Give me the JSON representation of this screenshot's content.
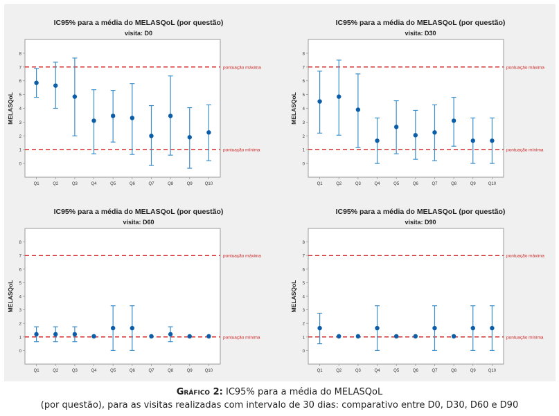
{
  "chart_data": [
    {
      "type": "scatter",
      "subtype": "interval_plot",
      "title": "IC95% para a média do MELASQoL (por questão)",
      "subtitle": "visita: D0",
      "ylabel": "MELASQoL",
      "xlabel": "",
      "ylim": [
        -1,
        9
      ],
      "yticks": [
        0,
        1,
        2,
        3,
        4,
        5,
        6,
        7,
        8
      ],
      "categories": [
        "Q1",
        "Q2",
        "Q3",
        "Q4",
        "Q5",
        "Q6",
        "Q7",
        "Q8",
        "Q9",
        "Q10"
      ],
      "means": [
        5.85,
        5.65,
        4.85,
        3.1,
        3.45,
        3.3,
        2.0,
        3.45,
        1.9,
        2.25
      ],
      "ci_low": [
        4.8,
        4.0,
        2.0,
        0.7,
        1.55,
        0.65,
        -0.15,
        0.6,
        -0.35,
        0.2
      ],
      "ci_high": [
        6.9,
        7.35,
        7.65,
        5.35,
        5.3,
        5.8,
        4.2,
        6.35,
        4.05,
        4.25
      ],
      "reference_lines": [
        {
          "value": 7,
          "label": "pontuação máxima",
          "color": "#d62728"
        },
        {
          "value": 1,
          "label": "pontuação mínima",
          "color": "#d62728"
        }
      ],
      "point_color": "#0b5da8",
      "interval_color": "#3c8ec9",
      "grid": false
    },
    {
      "type": "scatter",
      "subtype": "interval_plot",
      "title": "IC95% para a média do MELASQoL (por questão)",
      "subtitle": "visita: D30",
      "ylabel": "MELASQoL",
      "xlabel": "",
      "ylim": [
        -1,
        9
      ],
      "yticks": [
        0,
        1,
        2,
        3,
        4,
        5,
        6,
        7,
        8
      ],
      "categories": [
        "Q1",
        "Q2",
        "Q3",
        "Q4",
        "Q5",
        "Q6",
        "Q7",
        "Q8",
        "Q9",
        "Q10"
      ],
      "means": [
        4.5,
        4.85,
        3.9,
        1.65,
        2.65,
        2.05,
        2.25,
        3.1,
        1.65,
        1.65
      ],
      "ci_low": [
        2.2,
        2.05,
        1.15,
        0.0,
        0.7,
        0.3,
        0.2,
        1.25,
        0.0,
        0.0
      ],
      "ci_high": [
        6.7,
        7.5,
        6.5,
        3.3,
        4.55,
        3.85,
        4.25,
        4.8,
        3.3,
        3.3
      ],
      "reference_lines": [
        {
          "value": 7,
          "label": "pontuação máxima",
          "color": "#d62728"
        },
        {
          "value": 1,
          "label": "pontuação mínima",
          "color": "#d62728"
        }
      ],
      "point_color": "#0b5da8",
      "interval_color": "#3c8ec9",
      "grid": false
    },
    {
      "type": "scatter",
      "subtype": "interval_plot",
      "title": "IC95% para a média do MELASQoL (por questão)",
      "subtitle": "visita: D60",
      "ylabel": "MELASQoL",
      "xlabel": "",
      "ylim": [
        -1,
        9
      ],
      "yticks": [
        0,
        1,
        2,
        3,
        4,
        5,
        6,
        7,
        8
      ],
      "categories": [
        "Q1",
        "Q2",
        "Q3",
        "Q4",
        "Q5",
        "Q6",
        "Q7",
        "Q8",
        "Q9",
        "Q10"
      ],
      "means": [
        1.2,
        1.2,
        1.2,
        1.05,
        1.65,
        1.65,
        1.05,
        1.2,
        1.05,
        1.05
      ],
      "ci_low": [
        0.65,
        0.65,
        0.65,
        1.05,
        0.0,
        0.0,
        1.05,
        0.65,
        1.05,
        1.05
      ],
      "ci_high": [
        1.75,
        1.75,
        1.75,
        1.05,
        3.3,
        3.3,
        1.05,
        1.75,
        1.05,
        1.05
      ],
      "reference_lines": [
        {
          "value": 7,
          "label": "pontuação máxima",
          "color": "#d62728"
        },
        {
          "value": 1,
          "label": "pontuação mínima",
          "color": "#d62728"
        }
      ],
      "point_color": "#0b5da8",
      "interval_color": "#3c8ec9",
      "grid": false
    },
    {
      "type": "scatter",
      "subtype": "interval_plot",
      "title": "IC95% para a média do MELASQoL (por questão)",
      "subtitle": "visita: D90",
      "ylabel": "MELASQoL",
      "xlabel": "",
      "ylim": [
        -1,
        9
      ],
      "yticks": [
        0,
        1,
        2,
        3,
        4,
        5,
        6,
        7,
        8
      ],
      "categories": [
        "Q1",
        "Q2",
        "Q3",
        "Q4",
        "Q5",
        "Q6",
        "Q7",
        "Q8",
        "Q9",
        "Q10"
      ],
      "means": [
        1.65,
        1.05,
        1.05,
        1.65,
        1.05,
        1.05,
        1.65,
        1.05,
        1.65,
        1.65
      ],
      "ci_low": [
        0.5,
        1.05,
        1.05,
        0.0,
        1.05,
        1.05,
        0.0,
        1.05,
        0.0,
        0.0
      ],
      "ci_high": [
        2.75,
        1.05,
        1.05,
        3.3,
        1.05,
        1.05,
        3.3,
        1.05,
        3.3,
        3.3
      ],
      "reference_lines": [
        {
          "value": 7,
          "label": "pontuação máxima",
          "color": "#d62728"
        },
        {
          "value": 1,
          "label": "pontuação mínima",
          "color": "#d62728"
        }
      ],
      "point_color": "#0b5da8",
      "interval_color": "#3c8ec9",
      "grid": false
    }
  ],
  "caption": {
    "label": "Gráfico 2:",
    "line1": "IC95% para a média do MELASQoL",
    "line2": "(por questão), para as visitas realizadas com intervalo de 30 dias: comparativo entre D0, D30, D60 e D90"
  }
}
